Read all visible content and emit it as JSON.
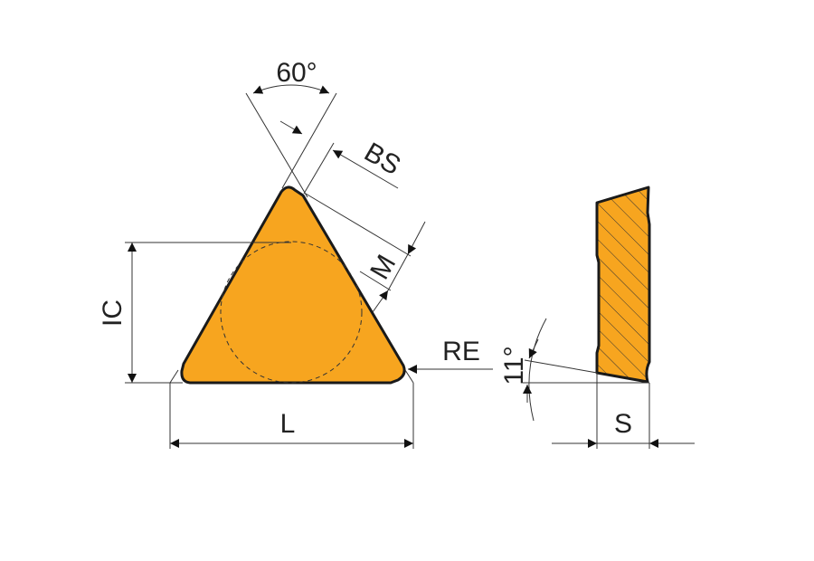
{
  "labels": {
    "angle_top": "60°",
    "bs": "BS",
    "m": "M",
    "ic": "IC",
    "re": "RE",
    "l": "L",
    "angle_side": "11°",
    "s": "S"
  },
  "colors": {
    "insert_fill": "#F7A51F",
    "outline": "#1a1a1a",
    "dimension": "#333333"
  }
}
